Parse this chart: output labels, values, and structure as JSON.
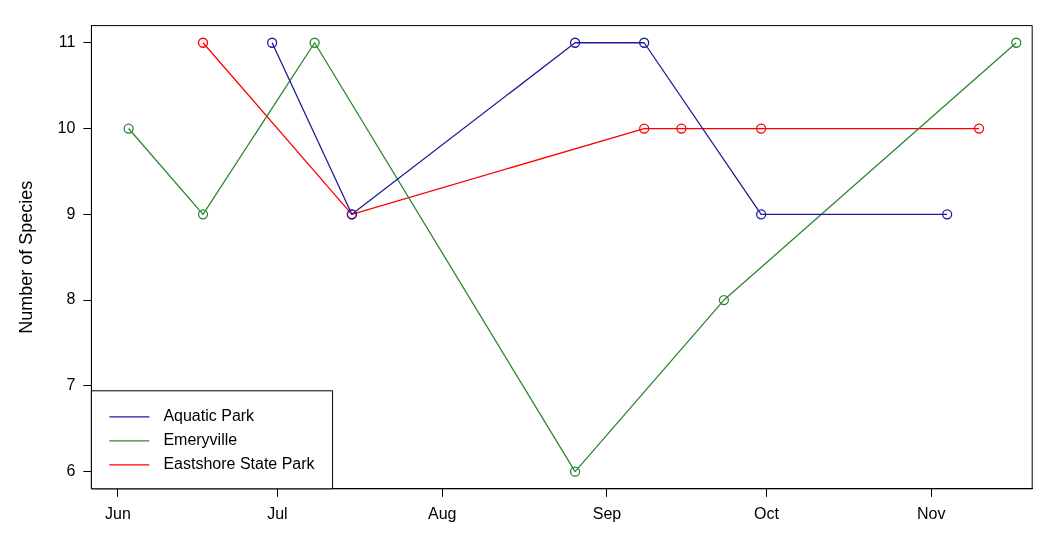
{
  "chart_data": {
    "type": "line",
    "ylabel": "Number of Species",
    "xlim": [
      "--05-27",
      "--11-20"
    ],
    "xticks": [
      {
        "value": "--06-01",
        "label": "Jun"
      },
      {
        "value": "--07-01",
        "label": "Jul"
      },
      {
        "value": "--08-01",
        "label": "Aug"
      },
      {
        "value": "--09-01",
        "label": "Sep"
      },
      {
        "value": "--10-01",
        "label": "Oct"
      },
      {
        "value": "--11-01",
        "label": "Nov"
      }
    ],
    "ylim": [
      5.8,
      11.2
    ],
    "yticks": [
      6,
      7,
      8,
      9,
      10,
      11
    ],
    "grid": false,
    "legend": "bottom left",
    "marker": "circle",
    "line_style": "solid",
    "series": [
      {
        "name": "Aquatic Park",
        "color": "#1c1c9c",
        "x": [
          "--06-30",
          "--07-15",
          "--08-26",
          "--09-08",
          "--09-30",
          "--11-04"
        ],
        "values": [
          11,
          9,
          11,
          11,
          9,
          9
        ]
      },
      {
        "name": "Emeryville",
        "color": "#2e862e",
        "x": [
          "--06-03",
          "--06-17",
          "--07-08",
          "--08-26",
          "--09-23",
          "--11-17"
        ],
        "values": [
          10,
          9,
          11,
          6,
          8,
          11
        ]
      },
      {
        "name": "Eastshore State Park",
        "color": "#ff0000",
        "x": [
          "--06-17",
          "--07-15",
          "--09-08",
          "--09-15",
          "--09-30",
          "--11-10"
        ],
        "values": [
          11,
          9,
          10,
          10,
          10,
          10
        ]
      }
    ]
  }
}
